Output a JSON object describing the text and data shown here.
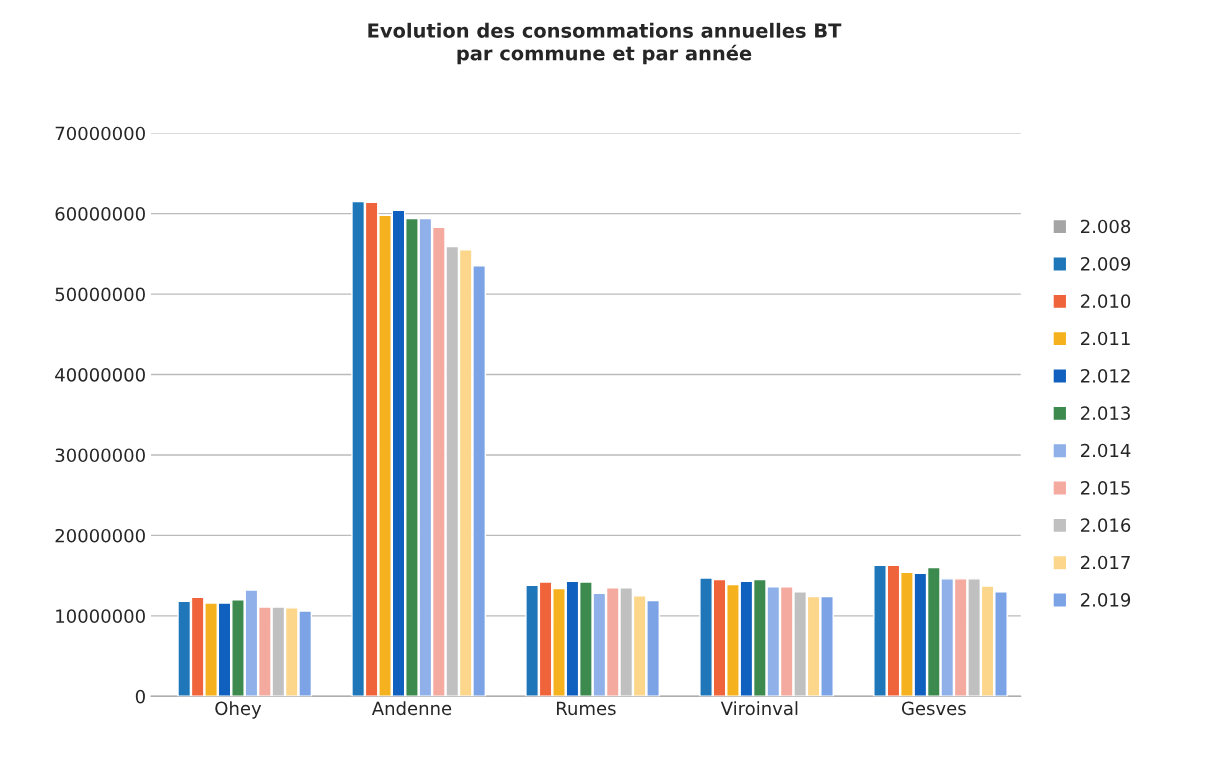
{
  "chart_data": {
    "type": "bar",
    "title": "Evolution des consommations annuelles BT\npar commune et par année",
    "categories": [
      "Ohey",
      "Andenne",
      "Rumes",
      "Viroinval",
      "Gesves"
    ],
    "series": [
      {
        "name": "2.008",
        "color": "#a5a5a5",
        "values": [
          null,
          null,
          null,
          null,
          null
        ]
      },
      {
        "name": "2.009",
        "color": "#1f77b9",
        "values": [
          11800000,
          61500000,
          13800000,
          14700000,
          16300000
        ]
      },
      {
        "name": "2.010",
        "color": "#f0643c",
        "values": [
          12300000,
          61400000,
          14200000,
          14500000,
          16300000
        ]
      },
      {
        "name": "2.011",
        "color": "#f5b21e",
        "values": [
          11600000,
          59800000,
          13400000,
          13900000,
          15400000
        ]
      },
      {
        "name": "2.012",
        "color": "#1060c0",
        "values": [
          11600000,
          60400000,
          14300000,
          14300000,
          15300000
        ]
      },
      {
        "name": "2.013",
        "color": "#3d8a4f",
        "values": [
          12000000,
          59400000,
          14200000,
          14500000,
          16000000
        ]
      },
      {
        "name": "2.014",
        "color": "#8fb0e8",
        "values": [
          13200000,
          59400000,
          12800000,
          13600000,
          14600000
        ]
      },
      {
        "name": "2.015",
        "color": "#f5aaa0",
        "values": [
          11100000,
          58300000,
          13500000,
          13600000,
          14600000
        ]
      },
      {
        "name": "2.016",
        "color": "#c0c0c0",
        "values": [
          11100000,
          55900000,
          13500000,
          13000000,
          14600000
        ]
      },
      {
        "name": "2.017",
        "color": "#fcd68a",
        "values": [
          11000000,
          55500000,
          12500000,
          12400000,
          13700000
        ]
      },
      {
        "name": "2.019",
        "color": "#7ba3e6",
        "values": [
          10600000,
          53500000,
          11900000,
          12400000,
          13000000
        ]
      }
    ],
    "ylim": [
      0,
      70000000
    ],
    "yticks": [
      0,
      10000000,
      20000000,
      30000000,
      40000000,
      50000000,
      60000000,
      70000000
    ],
    "grid": "y",
    "legend": "right"
  }
}
